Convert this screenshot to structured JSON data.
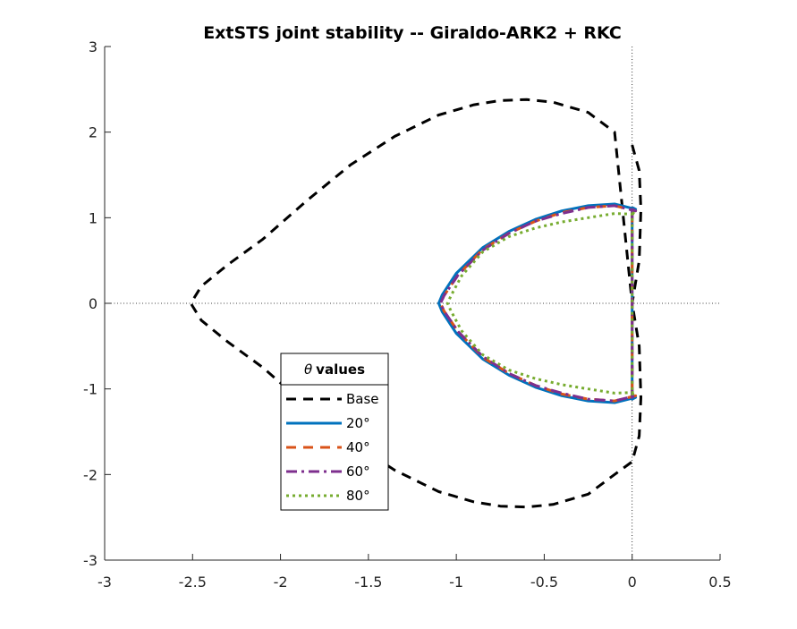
{
  "chart_data": {
    "type": "line",
    "title": "ExtSTS joint stability -- Giraldo-ARK2 + RKC",
    "xlabel": "",
    "ylabel": "",
    "xlim": [
      -3,
      0.5
    ],
    "ylim": [
      -3,
      3
    ],
    "x_ticks": [
      "-3",
      "-2.5",
      "-2",
      "-1.5",
      "-1",
      "-0.5",
      "0",
      "0.5"
    ],
    "y_ticks": [
      "3",
      "2",
      "1",
      "0",
      "-1",
      "-2",
      "-3"
    ],
    "grid": false,
    "reference_lines": [
      "x = 0",
      "y = 0"
    ],
    "legend": {
      "title_symbol": "θ",
      "title_text": "values",
      "placement": "lower-left",
      "entries": [
        "Base",
        "20°",
        "40°",
        "60°",
        "80°"
      ]
    },
    "series": [
      {
        "name": "Base",
        "color": "#000000",
        "style": "dashed",
        "x": [
          0.0,
          0.04,
          0.05,
          0.04,
          0.0,
          -0.1,
          -0.25,
          -0.45,
          -0.6,
          -0.75,
          -0.9,
          -1.1,
          -1.35,
          -1.6,
          -1.85,
          -2.1,
          -2.3,
          -2.45,
          -2.51,
          -2.45,
          -2.3,
          -2.1,
          -1.85,
          -1.6,
          -1.35,
          -1.1,
          -0.9,
          -0.75,
          -0.6,
          -0.45,
          -0.25,
          -0.1,
          0.0,
          0.04,
          0.05,
          0.04,
          0.0
        ],
        "y": [
          1.85,
          1.55,
          1.1,
          0.5,
          0.0,
          2.0,
          2.23,
          2.35,
          2.38,
          2.37,
          2.32,
          2.2,
          1.95,
          1.62,
          1.2,
          0.75,
          0.45,
          0.2,
          0.0,
          -0.2,
          -0.45,
          -0.75,
          -1.2,
          -1.62,
          -1.95,
          -2.2,
          -2.32,
          -2.37,
          -2.38,
          -2.35,
          -2.23,
          -2.0,
          -1.85,
          -1.55,
          -1.1,
          -0.5,
          0.0
        ]
      },
      {
        "name": "20°",
        "color": "#0072BD",
        "style": "solid",
        "x": [
          0.0,
          0.02,
          -0.1,
          -0.25,
          -0.4,
          -0.55,
          -0.7,
          -0.85,
          -1.0,
          -1.08,
          -1.1,
          -1.08,
          -1.0,
          -0.85,
          -0.7,
          -0.55,
          -0.4,
          -0.25,
          -0.1,
          0.02,
          0.0,
          0.0
        ],
        "y": [
          1.12,
          1.1,
          1.16,
          1.14,
          1.08,
          0.98,
          0.84,
          0.65,
          0.35,
          0.1,
          0.0,
          -0.1,
          -0.35,
          -0.65,
          -0.84,
          -0.98,
          -1.08,
          -1.14,
          -1.16,
          -1.1,
          -1.12,
          1.12
        ]
      },
      {
        "name": "40°",
        "color": "#D95319",
        "style": "dashed",
        "x": [
          0.0,
          0.02,
          -0.1,
          -0.25,
          -0.4,
          -0.55,
          -0.7,
          -0.85,
          -0.99,
          -1.07,
          -1.09,
          -1.07,
          -0.99,
          -0.85,
          -0.7,
          -0.55,
          -0.4,
          -0.25,
          -0.1,
          0.02,
          0.0,
          0.0
        ],
        "y": [
          1.1,
          1.08,
          1.14,
          1.12,
          1.06,
          0.96,
          0.82,
          0.63,
          0.33,
          0.09,
          0.0,
          -0.09,
          -0.33,
          -0.63,
          -0.82,
          -0.96,
          -1.06,
          -1.12,
          -1.14,
          -1.08,
          -1.1,
          1.1
        ]
      },
      {
        "name": "60°",
        "color": "#7E2F8E",
        "style": "dashdot",
        "x": [
          0.0,
          0.02,
          -0.1,
          -0.25,
          -0.4,
          -0.55,
          -0.7,
          -0.85,
          -0.99,
          -1.07,
          -1.09,
          -1.07,
          -0.99,
          -0.85,
          -0.7,
          -0.55,
          -0.4,
          -0.25,
          -0.1,
          0.02,
          0.0,
          0.0
        ],
        "y": [
          1.1,
          1.08,
          1.14,
          1.12,
          1.05,
          0.96,
          0.82,
          0.62,
          0.33,
          0.09,
          0.0,
          -0.09,
          -0.33,
          -0.62,
          -0.82,
          -0.96,
          -1.05,
          -1.12,
          -1.14,
          -1.08,
          -1.1,
          1.1
        ]
      },
      {
        "name": "80°",
        "color": "#77AC30",
        "style": "dotted",
        "x": [
          0.0,
          0.02,
          -0.1,
          -0.25,
          -0.4,
          -0.55,
          -0.7,
          -0.85,
          -0.97,
          -1.03,
          -1.05,
          -1.03,
          -0.97,
          -0.85,
          -0.7,
          -0.55,
          -0.4,
          -0.25,
          -0.1,
          0.02,
          0.0,
          0.0
        ],
        "y": [
          1.06,
          1.04,
          1.05,
          1.0,
          0.95,
          0.88,
          0.78,
          0.6,
          0.32,
          0.09,
          0.0,
          -0.09,
          -0.32,
          -0.6,
          -0.78,
          -0.88,
          -0.95,
          -1.0,
          -1.05,
          -1.04,
          -1.06,
          1.06
        ]
      }
    ]
  }
}
